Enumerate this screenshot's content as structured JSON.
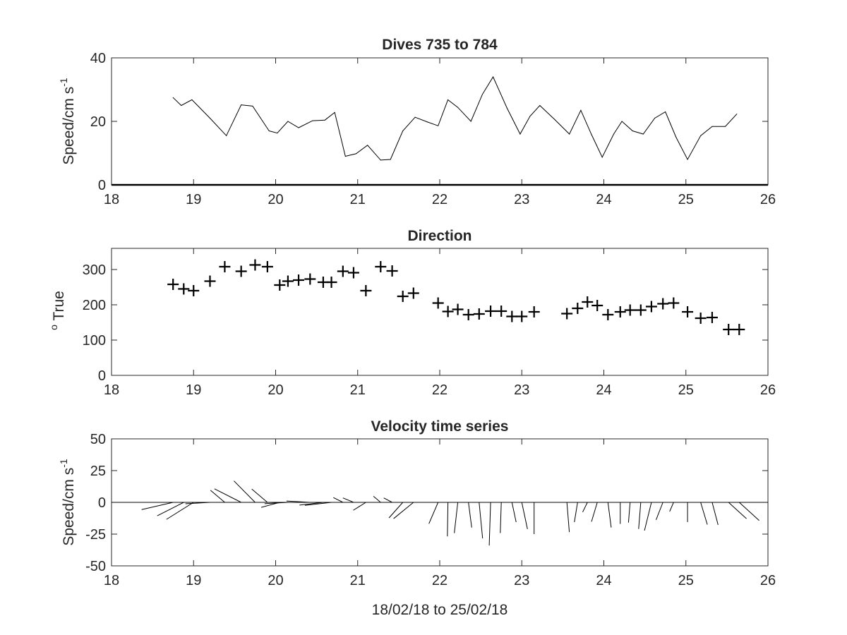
{
  "chart_data": [
    {
      "type": "line",
      "title": "Dives 735 to 784",
      "ylabel_main": "Speed/cm s",
      "ylabel_sup": "-1",
      "xlabel": "",
      "xlim": [
        18,
        26
      ],
      "ylim": [
        0,
        40
      ],
      "xticks": [
        "18",
        "19",
        "20",
        "21",
        "22",
        "23",
        "24",
        "25",
        "26"
      ],
      "yticks": [
        "0",
        "20",
        "40"
      ],
      "grid": false,
      "series": [
        {
          "x": [
            18.75,
            18.85,
            18.98,
            19.2,
            19.4,
            19.58,
            19.72,
            19.92,
            20.02,
            20.15,
            20.28,
            20.45,
            20.6,
            20.72,
            20.85,
            20.98,
            21.12,
            21.28,
            21.4,
            21.55,
            21.7,
            21.85,
            21.98,
            22.1,
            22.22,
            22.38,
            22.52,
            22.65,
            22.82,
            22.98,
            23.1,
            23.22,
            23.4,
            23.58,
            23.72,
            23.85,
            23.98,
            24.12,
            24.22,
            24.35,
            24.48,
            24.62,
            24.75,
            24.88,
            25.02,
            25.18,
            25.32,
            25.48,
            25.62
          ],
          "values": [
            27.5,
            25,
            26.8,
            21,
            15.5,
            25.2,
            24.8,
            17,
            16.3,
            20,
            18,
            20.2,
            20.4,
            22.8,
            9,
            9.8,
            12.5,
            7.8,
            8,
            17,
            21.3,
            19.8,
            18.6,
            26.8,
            24.4,
            20,
            28.5,
            34,
            24.2,
            16,
            21.6,
            25,
            20.6,
            16,
            23.5,
            15.8,
            8.7,
            16,
            20,
            17,
            16,
            21,
            23,
            15,
            8,
            15.5,
            18.4,
            18.4,
            22.3
          ]
        }
      ]
    },
    {
      "type": "scatter",
      "title": "Direction",
      "ylabel_sup": "o",
      "ylabel_main": " True",
      "xlabel": "",
      "xlim": [
        18,
        26
      ],
      "ylim": [
        0,
        360
      ],
      "xticks": [
        "18",
        "19",
        "20",
        "21",
        "22",
        "23",
        "24",
        "25",
        "26"
      ],
      "yticks": [
        "0",
        "100",
        "200",
        "300"
      ],
      "marker": "plus",
      "grid": false,
      "series": [
        {
          "x": [
            18.75,
            18.88,
            19.0,
            19.2,
            19.38,
            19.58,
            19.75,
            19.9,
            20.05,
            20.15,
            20.28,
            20.42,
            20.58,
            20.68,
            20.82,
            20.95,
            21.1,
            21.28,
            21.42,
            21.55,
            21.68,
            21.98,
            22.1,
            22.22,
            22.35,
            22.48,
            22.62,
            22.75,
            22.88,
            23.0,
            23.15,
            23.55,
            23.68,
            23.8,
            23.92,
            24.05,
            24.2,
            24.32,
            24.45,
            24.58,
            24.72,
            24.85,
            25.02,
            25.18,
            25.32,
            25.52,
            25.65
          ],
          "values": [
            258,
            245,
            240,
            267,
            308,
            295,
            313,
            308,
            256,
            267,
            270,
            273,
            264,
            264,
            295,
            291,
            240,
            308,
            296,
            224,
            233,
            205,
            181,
            187,
            172,
            174,
            182,
            182,
            167,
            167,
            180,
            175,
            190,
            208,
            198,
            172,
            180,
            185,
            185,
            195,
            203,
            205,
            180,
            162,
            164,
            130,
            130
          ]
        }
      ]
    },
    {
      "type": "line",
      "subtype": "stick",
      "title": "Velocity time series",
      "ylabel_main": "Speed/cm s",
      "ylabel_sup": "-1",
      "xlabel": "18/02/18 to 25/02/18",
      "xlim": [
        18,
        26
      ],
      "ylim": [
        -50,
        50
      ],
      "xticks": [
        "18",
        "19",
        "20",
        "21",
        "22",
        "23",
        "24",
        "25",
        "26"
      ],
      "yticks": [
        "-50",
        "-25",
        "0",
        "25",
        "50"
      ],
      "grid": false,
      "baseline": 0,
      "series": [
        {
          "x": [
            18.75,
            18.88,
            19.0,
            19.2,
            19.38,
            19.58,
            19.75,
            19.9,
            20.05,
            20.15,
            20.28,
            20.42,
            20.58,
            20.68,
            20.82,
            20.95,
            21.1,
            21.28,
            21.42,
            21.55,
            21.68,
            21.98,
            22.1,
            22.22,
            22.35,
            22.48,
            22.62,
            22.75,
            22.88,
            23.0,
            23.15,
            23.55,
            23.68,
            23.8,
            23.92,
            24.05,
            24.2,
            24.32,
            24.45,
            24.58,
            24.72,
            24.85,
            25.02,
            25.18,
            25.32,
            25.52,
            25.65
          ],
          "speed": [
            27.5,
            25,
            26.8,
            21,
            15.5,
            25.2,
            24.8,
            17,
            16.3,
            20,
            18,
            20.2,
            20.4,
            22.8,
            9,
            9.8,
            12.5,
            7.8,
            8,
            17,
            21.3,
            18.6,
            26.8,
            24.4,
            20,
            28.5,
            34,
            24.2,
            16,
            21.6,
            25,
            23.5,
            15.8,
            8.7,
            16,
            20,
            17,
            16,
            21,
            23,
            15,
            8,
            15.5,
            18.4,
            18.4,
            20,
            22.3
          ],
          "direction": [
            258,
            245,
            240,
            267,
            308,
            295,
            313,
            308,
            256,
            267,
            270,
            273,
            264,
            264,
            295,
            291,
            240,
            308,
            296,
            224,
            233,
            205,
            181,
            187,
            172,
            174,
            182,
            182,
            167,
            167,
            180,
            175,
            190,
            208,
            198,
            172,
            180,
            185,
            185,
            195,
            203,
            205,
            180,
            162,
            164,
            130,
            130
          ]
        }
      ]
    }
  ]
}
